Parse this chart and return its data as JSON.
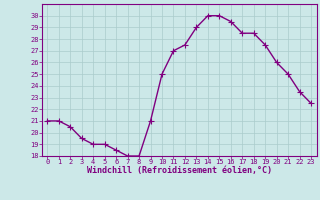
{
  "x": [
    0,
    1,
    2,
    3,
    4,
    5,
    6,
    7,
    8,
    9,
    10,
    11,
    12,
    13,
    14,
    15,
    16,
    17,
    18,
    19,
    20,
    21,
    22,
    23
  ],
  "y": [
    21,
    21,
    20.5,
    19.5,
    19,
    19,
    18.5,
    18,
    18,
    21,
    25,
    27,
    27.5,
    29,
    30,
    30,
    29.5,
    28.5,
    28.5,
    27.5,
    26,
    25,
    23.5,
    22.5
  ],
  "line_color": "#800080",
  "marker": "+",
  "marker_color": "#800080",
  "bg_color": "#cce8e8",
  "grid_color": "#aacccc",
  "xlabel": "Windchill (Refroidissement éolien,°C)",
  "xlabel_color": "#800080",
  "tick_color": "#800080",
  "ylim": [
    18,
    31
  ],
  "xlim": [
    -0.5,
    23.5
  ],
  "yticks": [
    18,
    19,
    20,
    21,
    22,
    23,
    24,
    25,
    26,
    27,
    28,
    29,
    30
  ],
  "xticks": [
    0,
    1,
    2,
    3,
    4,
    5,
    6,
    7,
    8,
    9,
    10,
    11,
    12,
    13,
    14,
    15,
    16,
    17,
    18,
    19,
    20,
    21,
    22,
    23
  ],
  "xtick_labels": [
    "0",
    "1",
    "2",
    "3",
    "4",
    "5",
    "6",
    "7",
    "8",
    "9",
    "10",
    "11",
    "12",
    "13",
    "14",
    "15",
    "16",
    "17",
    "18",
    "19",
    "20",
    "21",
    "22",
    "23"
  ],
  "ytick_labels": [
    "18",
    "19",
    "20",
    "21",
    "22",
    "23",
    "24",
    "25",
    "26",
    "27",
    "28",
    "29",
    "30"
  ],
  "spine_color": "#800080",
  "marker_size": 4,
  "line_width": 1.0,
  "tick_fontsize": 5.0,
  "xlabel_fontsize": 6.0
}
